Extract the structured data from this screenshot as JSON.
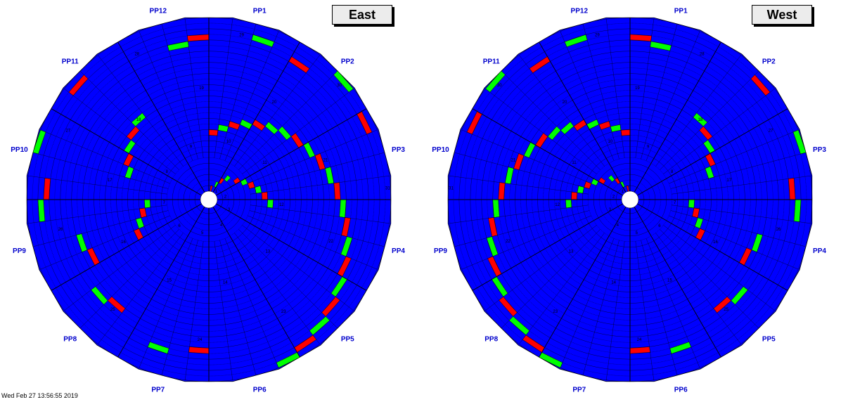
{
  "panels": [
    {
      "title": "East",
      "pp_labels": [
        "PP1",
        "PP2",
        "PP3",
        "PP4",
        "PP5",
        "PP6",
        "PP7",
        "PP8",
        "PP9",
        "PP10",
        "PP11",
        "PP12"
      ],
      "mirrored": false,
      "highlights": [
        {
          "ring": 1,
          "sector": 1,
          "status": "red"
        },
        {
          "ring": 2,
          "sector": 3,
          "status": "green"
        },
        {
          "ring": 3,
          "sector": 4,
          "status": "red"
        },
        {
          "ring": 4,
          "sector": 5,
          "status": "green"
        },
        {
          "ring": 5,
          "sector": 7,
          "status": "red"
        },
        {
          "ring": 6,
          "sector": 8,
          "status": "green"
        },
        {
          "ring": 7,
          "sector": 9,
          "status": "red"
        },
        {
          "ring": 8,
          "sector": 10,
          "status": "green"
        },
        {
          "ring": 9,
          "sector": 11,
          "status": "red"
        },
        {
          "ring": 10,
          "sector": 12,
          "status": "green"
        },
        {
          "ring": 11,
          "sector": 0,
          "status": "red"
        },
        {
          "ring": 12,
          "sector": 1,
          "status": "green"
        },
        {
          "ring": 13,
          "sector": 2,
          "status": "red"
        },
        {
          "ring": 14,
          "sector": 3,
          "status": "green"
        },
        {
          "ring": 15,
          "sector": 4,
          "status": "red"
        },
        {
          "ring": 16,
          "sector": 5,
          "status": "green"
        },
        {
          "ring": 17,
          "sector": 6,
          "status": "green"
        },
        {
          "ring": 18,
          "sector": 7,
          "status": "red"
        },
        {
          "ring": 19,
          "sector": 8,
          "status": "green"
        },
        {
          "ring": 20,
          "sector": 9,
          "status": "red"
        },
        {
          "ring": 21,
          "sector": 10,
          "status": "green"
        },
        {
          "ring": 22,
          "sector": 11,
          "status": "red"
        },
        {
          "ring": 23,
          "sector": 12,
          "status": "green"
        },
        {
          "ring": 24,
          "sector": 13,
          "status": "red"
        },
        {
          "ring": 25,
          "sector": 14,
          "status": "green"
        },
        {
          "ring": 26,
          "sector": 15,
          "status": "red"
        },
        {
          "ring": 27,
          "sector": 16,
          "status": "green"
        },
        {
          "ring": 28,
          "sector": 17,
          "status": "red"
        },
        {
          "ring": 29,
          "sector": 18,
          "status": "green"
        },
        {
          "ring": 30,
          "sector": 19,
          "status": "red"
        },
        {
          "ring": 31,
          "sector": 20,
          "status": "green"
        },
        {
          "ring": 13,
          "sector": 32,
          "status": "red"
        },
        {
          "ring": 12,
          "sector": 33,
          "status": "green"
        },
        {
          "ring": 11,
          "sector": 34,
          "status": "red"
        },
        {
          "ring": 10,
          "sector": 35,
          "status": "green"
        },
        {
          "ring": 14,
          "sector": 38,
          "status": "green"
        },
        {
          "ring": 15,
          "sector": 39,
          "status": "red"
        },
        {
          "ring": 16,
          "sector": 40,
          "status": "green"
        },
        {
          "ring": 17,
          "sector": 41,
          "status": "red"
        },
        {
          "ring": 18,
          "sector": 42,
          "status": "green"
        },
        {
          "ring": 27,
          "sector": 46,
          "status": "green"
        },
        {
          "ring": 28,
          "sector": 47,
          "status": "red"
        },
        {
          "ring": 29,
          "sector": 2,
          "status": "green"
        },
        {
          "ring": 28,
          "sector": 4,
          "status": "red"
        },
        {
          "ring": 31,
          "sector": 6,
          "status": "green"
        },
        {
          "ring": 30,
          "sector": 8,
          "status": "red"
        },
        {
          "ring": 26,
          "sector": 24,
          "status": "red"
        },
        {
          "ring": 27,
          "sector": 26,
          "status": "green"
        },
        {
          "ring": 24,
          "sector": 29,
          "status": "red"
        },
        {
          "ring": 25,
          "sector": 30,
          "status": "green"
        },
        {
          "ring": 22,
          "sector": 32,
          "status": "red"
        },
        {
          "ring": 23,
          "sector": 33,
          "status": "green"
        },
        {
          "ring": 29,
          "sector": 35,
          "status": "green"
        },
        {
          "ring": 28,
          "sector": 36,
          "status": "red"
        },
        {
          "ring": 31,
          "sector": 38,
          "status": "green"
        },
        {
          "ring": 30,
          "sector": 41,
          "status": "red"
        }
      ]
    },
    {
      "title": "West",
      "pp_labels": [
        "PP12",
        "PP11",
        "PP10",
        "PP9",
        "PP8",
        "PP7",
        "PP6",
        "PP5",
        "PP4",
        "PP3",
        "PP2",
        "PP1"
      ],
      "mirrored": true,
      "highlights": [
        {
          "ring": 1,
          "sector": 1,
          "status": "red"
        },
        {
          "ring": 2,
          "sector": 3,
          "status": "green"
        },
        {
          "ring": 3,
          "sector": 4,
          "status": "red"
        },
        {
          "ring": 4,
          "sector": 5,
          "status": "green"
        },
        {
          "ring": 5,
          "sector": 7,
          "status": "red"
        },
        {
          "ring": 6,
          "sector": 8,
          "status": "green"
        },
        {
          "ring": 7,
          "sector": 9,
          "status": "red"
        },
        {
          "ring": 8,
          "sector": 10,
          "status": "green"
        },
        {
          "ring": 9,
          "sector": 11,
          "status": "red"
        },
        {
          "ring": 10,
          "sector": 12,
          "status": "green"
        },
        {
          "ring": 11,
          "sector": 0,
          "status": "red"
        },
        {
          "ring": 12,
          "sector": 1,
          "status": "green"
        },
        {
          "ring": 13,
          "sector": 2,
          "status": "red"
        },
        {
          "ring": 14,
          "sector": 3,
          "status": "green"
        },
        {
          "ring": 15,
          "sector": 4,
          "status": "red"
        },
        {
          "ring": 16,
          "sector": 5,
          "status": "green"
        },
        {
          "ring": 17,
          "sector": 6,
          "status": "green"
        },
        {
          "ring": 18,
          "sector": 7,
          "status": "red"
        },
        {
          "ring": 19,
          "sector": 8,
          "status": "green"
        },
        {
          "ring": 20,
          "sector": 9,
          "status": "red"
        },
        {
          "ring": 21,
          "sector": 10,
          "status": "green"
        },
        {
          "ring": 22,
          "sector": 11,
          "status": "red"
        },
        {
          "ring": 23,
          "sector": 12,
          "status": "green"
        },
        {
          "ring": 24,
          "sector": 13,
          "status": "red"
        },
        {
          "ring": 25,
          "sector": 14,
          "status": "green"
        },
        {
          "ring": 26,
          "sector": 15,
          "status": "red"
        },
        {
          "ring": 27,
          "sector": 16,
          "status": "green"
        },
        {
          "ring": 28,
          "sector": 17,
          "status": "red"
        },
        {
          "ring": 29,
          "sector": 18,
          "status": "green"
        },
        {
          "ring": 30,
          "sector": 19,
          "status": "red"
        },
        {
          "ring": 31,
          "sector": 20,
          "status": "green"
        },
        {
          "ring": 13,
          "sector": 32,
          "status": "red"
        },
        {
          "ring": 12,
          "sector": 33,
          "status": "green"
        },
        {
          "ring": 11,
          "sector": 34,
          "status": "red"
        },
        {
          "ring": 10,
          "sector": 35,
          "status": "green"
        },
        {
          "ring": 14,
          "sector": 38,
          "status": "green"
        },
        {
          "ring": 15,
          "sector": 39,
          "status": "red"
        },
        {
          "ring": 16,
          "sector": 40,
          "status": "green"
        },
        {
          "ring": 17,
          "sector": 41,
          "status": "red"
        },
        {
          "ring": 18,
          "sector": 42,
          "status": "green"
        },
        {
          "ring": 27,
          "sector": 46,
          "status": "green"
        },
        {
          "ring": 28,
          "sector": 47,
          "status": "red"
        },
        {
          "ring": 29,
          "sector": 2,
          "status": "green"
        },
        {
          "ring": 28,
          "sector": 4,
          "status": "red"
        },
        {
          "ring": 31,
          "sector": 6,
          "status": "green"
        },
        {
          "ring": 30,
          "sector": 8,
          "status": "red"
        },
        {
          "ring": 26,
          "sector": 24,
          "status": "red"
        },
        {
          "ring": 27,
          "sector": 26,
          "status": "green"
        },
        {
          "ring": 24,
          "sector": 29,
          "status": "red"
        },
        {
          "ring": 25,
          "sector": 30,
          "status": "green"
        },
        {
          "ring": 22,
          "sector": 32,
          "status": "red"
        },
        {
          "ring": 23,
          "sector": 33,
          "status": "green"
        },
        {
          "ring": 29,
          "sector": 35,
          "status": "green"
        },
        {
          "ring": 28,
          "sector": 36,
          "status": "red"
        },
        {
          "ring": 31,
          "sector": 38,
          "status": "green"
        },
        {
          "ring": 30,
          "sector": 41,
          "status": "red"
        }
      ]
    }
  ],
  "ring_count": 31,
  "sector_count": 48,
  "colors": {
    "base": "#0000ff",
    "red": "#ff0000",
    "green": "#00ff00",
    "label": "#0000cc",
    "lines": "#000000",
    "hub": "#ffffff"
  },
  "footer": "Wed Feb 27 13:56:55 2019"
}
